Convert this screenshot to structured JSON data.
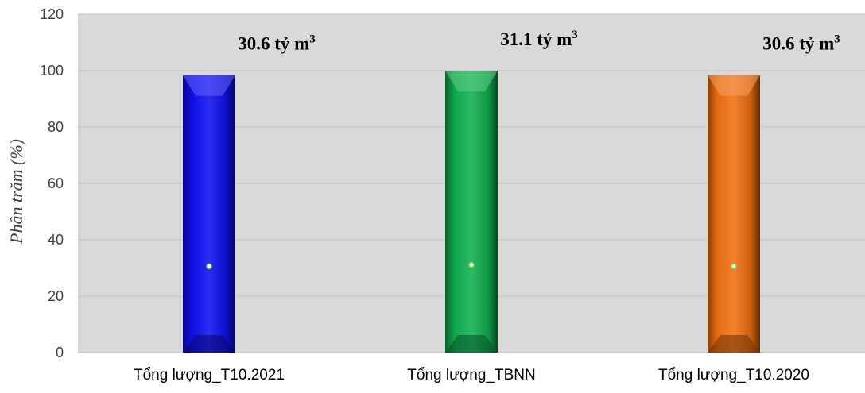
{
  "chart_data": {
    "type": "bar",
    "categories": [
      "Tổng lượng_T10.2021",
      "Tổng lượng_TBNN",
      "Tổng lượng_T10.2020"
    ],
    "values": [
      98.4,
      100,
      98.4
    ],
    "point_markers": [
      30.6,
      31.1,
      30.6
    ],
    "data_labels": [
      {
        "value": "30.6 tỷ m",
        "sup": "3"
      },
      {
        "value": "31.1 tỷ m",
        "sup": "3"
      },
      {
        "value": "30.6 tỷ m",
        "sup": "3"
      }
    ],
    "ylabel": "Phần trăm (%)",
    "xlabel": "",
    "ylim": [
      0,
      120
    ],
    "yticks": [
      0,
      20,
      40,
      60,
      80,
      100,
      120
    ],
    "grid": true,
    "colors": [
      "#1010f0",
      "#10b050",
      "#f07010"
    ],
    "plot_background": "#d9d9d9"
  }
}
